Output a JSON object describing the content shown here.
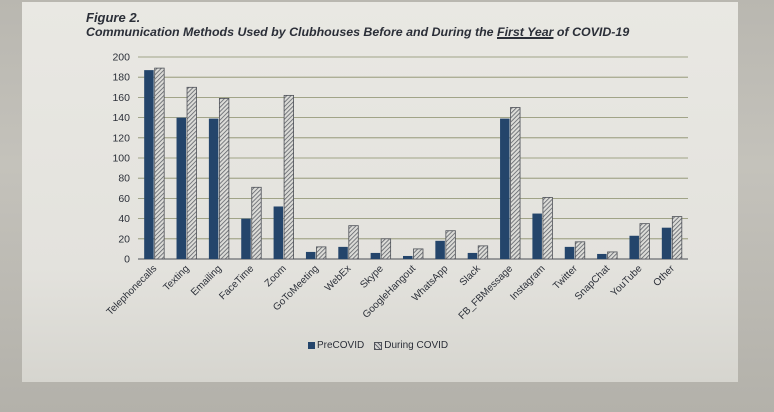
{
  "figure": {
    "label": "Figure 2.",
    "title_before": "Communication Methods Used by Clubhouses Before and During the ",
    "title_highlight": "First Year",
    "title_after": " of COVID-19"
  },
  "colors": {
    "pre": "#24456b",
    "during_hatch": "#6b6e75",
    "grid": "#8a8e6a",
    "text": "#2b2f38"
  },
  "chart_data": {
    "type": "bar",
    "categories": [
      "Telephonecalls",
      "Texting",
      "Emailing",
      "FaceTime",
      "Zoom",
      "GoToMeeting",
      "WebEx",
      "Skype",
      "GoogleHangout",
      "WhatsApp",
      "Slack",
      "FB_FBMessage",
      "Instagram",
      "Twitter",
      "SnapChat",
      "YouTube",
      "Other"
    ],
    "series": [
      {
        "name": "PreCOVID",
        "values": [
          187,
          140,
          139,
          40,
          52,
          7,
          12,
          6,
          3,
          18,
          6,
          139,
          45,
          12,
          5,
          23,
          31
        ]
      },
      {
        "name": "During COVID",
        "values": [
          189,
          170,
          159,
          71,
          162,
          12,
          33,
          20,
          10,
          28,
          13,
          150,
          61,
          17,
          7,
          35,
          42
        ]
      }
    ],
    "yticks": [
      0,
      20,
      40,
      60,
      80,
      100,
      120,
      140,
      160,
      180,
      200
    ],
    "ylim": [
      0,
      200
    ],
    "grid": true,
    "legend_position": "bottom"
  }
}
